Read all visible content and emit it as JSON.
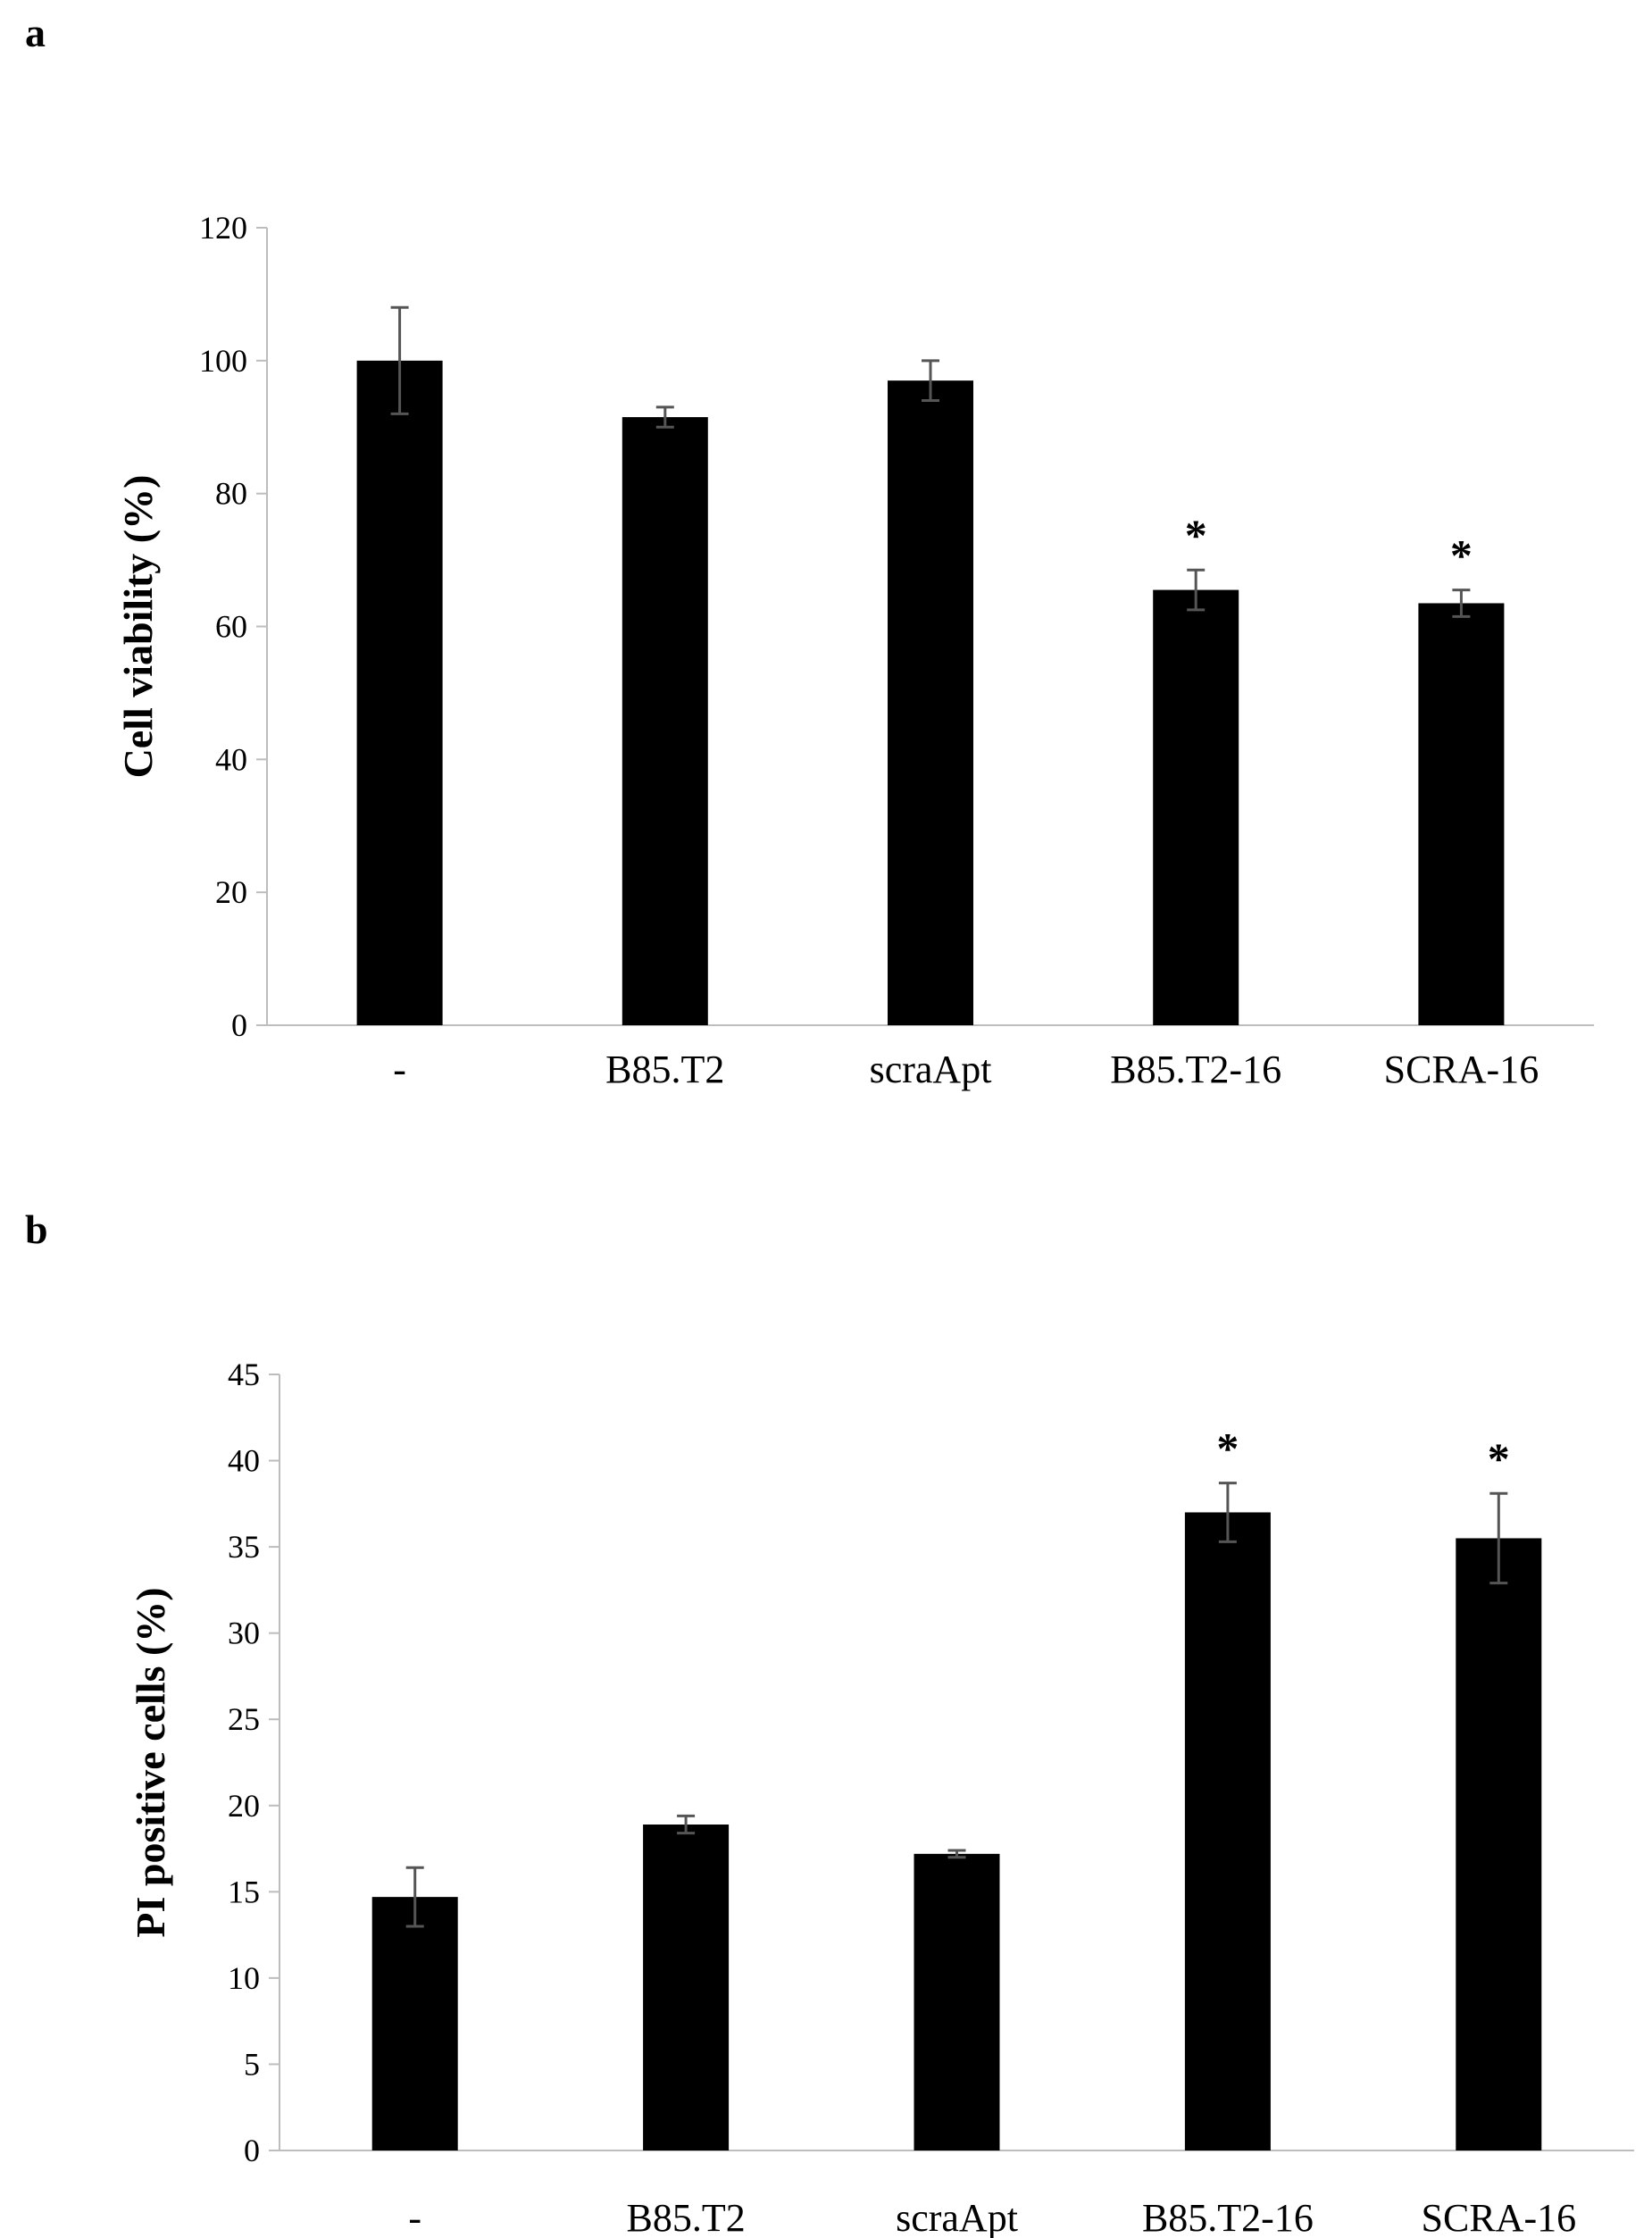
{
  "chart_data": [
    {
      "panel": "a",
      "type": "bar",
      "title": "",
      "xlabel": "",
      "ylabel": "Cell viability (%)",
      "ylim": [
        0,
        120
      ],
      "yticks": [
        0,
        20,
        40,
        60,
        80,
        100,
        120
      ],
      "categories": [
        "-",
        "B85.T2",
        "scraApt",
        "B85.T2-16",
        "SCRA-16"
      ],
      "values": [
        100,
        91.5,
        97,
        65.5,
        63.5
      ],
      "errors": [
        8,
        1.5,
        3,
        3,
        2
      ],
      "significance": [
        "",
        "",
        "",
        "*",
        "*"
      ],
      "bar_color": "#000000",
      "error_color": "#555555"
    },
    {
      "panel": "b",
      "type": "bar",
      "title": "",
      "xlabel": "",
      "ylabel": "PI positive cells (%)",
      "ylim": [
        0,
        45
      ],
      "yticks": [
        0,
        5,
        10,
        15,
        20,
        25,
        30,
        35,
        40,
        45
      ],
      "categories": [
        "-",
        "B85.T2",
        "scraApt",
        "B85.T2-16",
        "SCRA-16"
      ],
      "values": [
        14.7,
        18.9,
        17.2,
        37,
        35.5
      ],
      "errors": [
        1.7,
        0.5,
        0.2,
        1.7,
        2.6
      ],
      "significance": [
        "",
        "",
        "",
        "*",
        "*"
      ],
      "bar_color": "#000000",
      "error_color": "#555555"
    }
  ],
  "panel_labels": [
    "a",
    "b"
  ]
}
